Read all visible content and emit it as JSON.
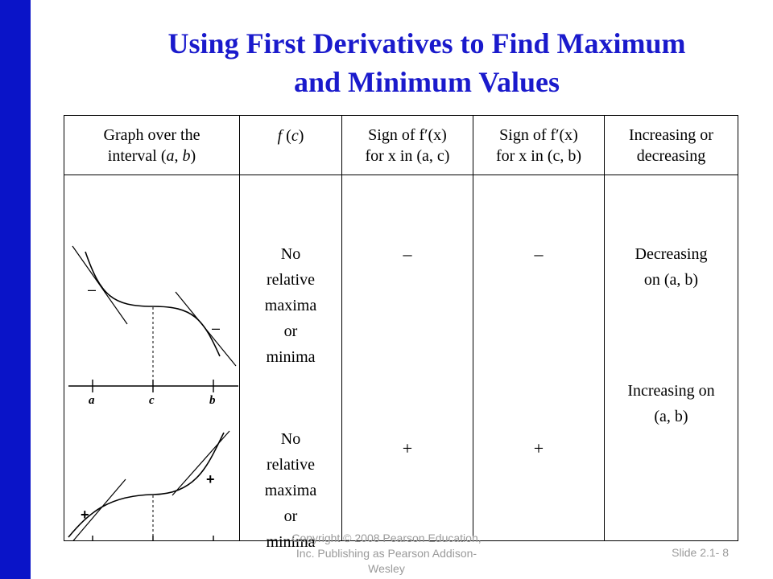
{
  "slide": {
    "title_line1": "Using First Derivatives to Find Maximum",
    "title_line2": "and Minimum Values",
    "accent_color": "#0a14c8",
    "title_color": "#1a1acc"
  },
  "table": {
    "headers": {
      "col1_line1": "Graph over the",
      "col1_line2_pre": "interval (",
      "col1_a": "a",
      "col1_comma": ", ",
      "col1_b": "b",
      "col1_close": ")",
      "col2_f": "f",
      "col2_rest": " (",
      "col2_c": "c",
      "col2_close": ")",
      "col3_line1": "Sign of f′(x)",
      "col3_line2": "for x in (a, c)",
      "col4_line1": "Sign of f′(x)",
      "col4_line2": "for x in (c, b)",
      "col5_line1": "Increasing or",
      "col5_line2": "decreasing"
    },
    "row1": {
      "fc_line1": "No",
      "fc_line2": "relative",
      "fc_line3": "maxima",
      "fc_line4": "or",
      "fc_line5": "minima",
      "sign_ac": "–",
      "sign_cb": "–",
      "trend_line1": "Decreasing",
      "trend_line2": "on (a, b)"
    },
    "row2": {
      "fc_line1": "No",
      "fc_line2": "relative",
      "fc_line3": "maxima",
      "fc_line4": "or",
      "fc_line5": "minima",
      "sign_ac": "+",
      "sign_cb": "+",
      "trend_line1": "Increasing on",
      "trend_line2": "(a, b)"
    },
    "graph_labels": {
      "a": "a",
      "c": "c",
      "b": "b",
      "minus": "–",
      "plus": "+"
    }
  },
  "footer": {
    "copyright_line1": "Copyright © 2008 Pearson Education,",
    "copyright_line2": "Inc.  Publishing as Pearson Addison-",
    "copyright_line3": "Wesley",
    "slide_number": "Slide 2.1- 8"
  }
}
